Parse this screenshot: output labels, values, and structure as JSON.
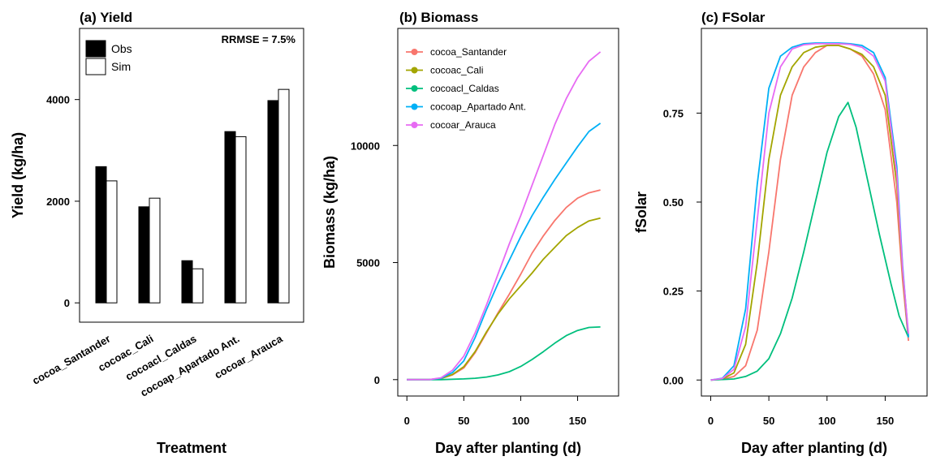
{
  "chart_data": [
    {
      "type": "bar",
      "title": "(a) Yield",
      "xlabel": "Treatment",
      "ylabel": "Yield (kg/ha)",
      "ylim": [
        -380,
        5400
      ],
      "yticks": [
        0,
        2000,
        4000
      ],
      "annotation": "RRMSE = 7.5%",
      "legend_position": "top-left",
      "categories": [
        "cocoa_Santander",
        "cocoac_Cali",
        "cocoacl_Caldas",
        "cocoap_Apartado Ant.",
        "cocoar_Arauca"
      ],
      "series": [
        {
          "name": "Obs",
          "color": "#000000",
          "values": [
            2680,
            1890,
            830,
            3370,
            3980
          ]
        },
        {
          "name": "Sim",
          "color": "#ffffff",
          "values": [
            2400,
            2060,
            670,
            3270,
            4200
          ]
        }
      ]
    },
    {
      "type": "line",
      "title": "(b) Biomass",
      "xlabel": "Day after planting (d)",
      "ylabel": "Biomass (kg/ha)",
      "xlim": [
        -8,
        186
      ],
      "ylim": [
        -700,
        15000
      ],
      "xticks": [
        0,
        50,
        100,
        150
      ],
      "yticks": [
        0,
        5000,
        10000
      ],
      "legend_position": "top-left",
      "series": [
        {
          "name": "cocoa_Santander",
          "color": "#F8766D",
          "points": [
            [
              0,
              0
            ],
            [
              20,
              5
            ],
            [
              30,
              50
            ],
            [
              40,
              200
            ],
            [
              50,
              500
            ],
            [
              60,
              1150
            ],
            [
              70,
              2000
            ],
            [
              80,
              2850
            ],
            [
              90,
              3650
            ],
            [
              100,
              4500
            ],
            [
              110,
              5400
            ],
            [
              120,
              6150
            ],
            [
              130,
              6800
            ],
            [
              140,
              7350
            ],
            [
              150,
              7750
            ],
            [
              160,
              7980
            ],
            [
              170,
              8100
            ]
          ]
        },
        {
          "name": "cocoac_Cali",
          "color": "#A3A500",
          "points": [
            [
              0,
              0
            ],
            [
              20,
              5
            ],
            [
              30,
              50
            ],
            [
              40,
              220
            ],
            [
              50,
              550
            ],
            [
              60,
              1200
            ],
            [
              70,
              2050
            ],
            [
              80,
              2800
            ],
            [
              90,
              3450
            ],
            [
              100,
              4000
            ],
            [
              110,
              4550
            ],
            [
              120,
              5150
            ],
            [
              130,
              5650
            ],
            [
              140,
              6150
            ],
            [
              150,
              6500
            ],
            [
              160,
              6780
            ],
            [
              170,
              6900
            ]
          ]
        },
        {
          "name": "cocoacl_Caldas",
          "color": "#00BF7D",
          "points": [
            [
              0,
              0
            ],
            [
              30,
              0
            ],
            [
              50,
              30
            ],
            [
              60,
              60
            ],
            [
              70,
              110
            ],
            [
              80,
              200
            ],
            [
              90,
              340
            ],
            [
              100,
              560
            ],
            [
              110,
              860
            ],
            [
              120,
              1200
            ],
            [
              130,
              1560
            ],
            [
              140,
              1880
            ],
            [
              150,
              2100
            ],
            [
              160,
              2230
            ],
            [
              170,
              2250
            ]
          ]
        },
        {
          "name": "cocoap_Apartado Ant.",
          "color": "#00B0F6",
          "points": [
            [
              0,
              0
            ],
            [
              20,
              5
            ],
            [
              30,
              60
            ],
            [
              40,
              300
            ],
            [
              50,
              800
            ],
            [
              60,
              1800
            ],
            [
              70,
              3000
            ],
            [
              80,
              4100
            ],
            [
              90,
              5100
            ],
            [
              100,
              6100
            ],
            [
              110,
              7000
            ],
            [
              120,
              7800
            ],
            [
              130,
              8550
            ],
            [
              140,
              9250
            ],
            [
              150,
              9950
            ],
            [
              160,
              10600
            ],
            [
              170,
              10950
            ]
          ]
        },
        {
          "name": "cocoar_Arauca",
          "color": "#E76BF3",
          "points": [
            [
              0,
              0
            ],
            [
              20,
              5
            ],
            [
              30,
              80
            ],
            [
              40,
              400
            ],
            [
              50,
              1000
            ],
            [
              60,
              2000
            ],
            [
              70,
              3200
            ],
            [
              80,
              4500
            ],
            [
              90,
              5800
            ],
            [
              100,
              7000
            ],
            [
              110,
              8300
            ],
            [
              120,
              9600
            ],
            [
              130,
              10900
            ],
            [
              140,
              12000
            ],
            [
              150,
              12900
            ],
            [
              160,
              13600
            ],
            [
              170,
              14000
            ]
          ]
        }
      ]
    },
    {
      "type": "line",
      "title": "(c) FSolar",
      "xlabel": "Day after planting (d)",
      "ylabel": "fSolar",
      "xlim": [
        -8,
        186
      ],
      "ylim": [
        -0.045,
        0.988
      ],
      "xticks": [
        0,
        50,
        100,
        150
      ],
      "yticks": [
        0.0,
        0.25,
        0.5,
        0.75
      ],
      "ytick_labels": [
        "0.00",
        "0.25",
        "0.50",
        "0.75"
      ],
      "series": [
        {
          "name": "cocoa_Santander",
          "color": "#F8766D",
          "points": [
            [
              0,
              0
            ],
            [
              10,
              0.002
            ],
            [
              20,
              0.01
            ],
            [
              30,
              0.04
            ],
            [
              40,
              0.14
            ],
            [
              50,
              0.36
            ],
            [
              60,
              0.62
            ],
            [
              70,
              0.8
            ],
            [
              80,
              0.88
            ],
            [
              90,
              0.92
            ],
            [
              100,
              0.94
            ],
            [
              110,
              0.94
            ],
            [
              120,
              0.93
            ],
            [
              130,
              0.91
            ],
            [
              140,
              0.86
            ],
            [
              150,
              0.76
            ],
            [
              160,
              0.5
            ],
            [
              165,
              0.28
            ],
            [
              170,
              0.11
            ]
          ]
        },
        {
          "name": "cocoac_Cali",
          "color": "#A3A500",
          "points": [
            [
              0,
              0
            ],
            [
              10,
              0.003
            ],
            [
              20,
              0.02
            ],
            [
              30,
              0.1
            ],
            [
              40,
              0.33
            ],
            [
              50,
              0.62
            ],
            [
              60,
              0.8
            ],
            [
              70,
              0.88
            ],
            [
              80,
              0.92
            ],
            [
              90,
              0.935
            ],
            [
              100,
              0.94
            ],
            [
              110,
              0.94
            ],
            [
              120,
              0.93
            ],
            [
              130,
              0.915
            ],
            [
              140,
              0.88
            ],
            [
              150,
              0.8
            ],
            [
              160,
              0.55
            ],
            [
              165,
              0.3
            ],
            [
              170,
              0.12
            ]
          ]
        },
        {
          "name": "cocoacl_Caldas",
          "color": "#00BF7D",
          "points": [
            [
              0,
              0
            ],
            [
              20,
              0.003
            ],
            [
              30,
              0.01
            ],
            [
              40,
              0.025
            ],
            [
              50,
              0.06
            ],
            [
              60,
              0.13
            ],
            [
              70,
              0.23
            ],
            [
              80,
              0.36
            ],
            [
              90,
              0.5
            ],
            [
              100,
              0.64
            ],
            [
              110,
              0.74
            ],
            [
              118,
              0.78
            ],
            [
              125,
              0.71
            ],
            [
              135,
              0.56
            ],
            [
              145,
              0.41
            ],
            [
              155,
              0.27
            ],
            [
              162,
              0.18
            ],
            [
              170,
              0.12
            ]
          ]
        },
        {
          "name": "cocoap_Apartado Ant.",
          "color": "#00B0F6",
          "points": [
            [
              0,
              0
            ],
            [
              10,
              0.005
            ],
            [
              20,
              0.04
            ],
            [
              30,
              0.2
            ],
            [
              40,
              0.55
            ],
            [
              50,
              0.82
            ],
            [
              60,
              0.91
            ],
            [
              70,
              0.935
            ],
            [
              80,
              0.945
            ],
            [
              90,
              0.947
            ],
            [
              100,
              0.947
            ],
            [
              110,
              0.947
            ],
            [
              120,
              0.945
            ],
            [
              130,
              0.94
            ],
            [
              140,
              0.92
            ],
            [
              150,
              0.85
            ],
            [
              160,
              0.6
            ],
            [
              165,
              0.32
            ],
            [
              170,
              0.12
            ]
          ]
        },
        {
          "name": "cocoar_Arauca",
          "color": "#E76BF3",
          "points": [
            [
              0,
              0
            ],
            [
              10,
              0.004
            ],
            [
              20,
              0.03
            ],
            [
              30,
              0.15
            ],
            [
              40,
              0.45
            ],
            [
              50,
              0.75
            ],
            [
              60,
              0.88
            ],
            [
              70,
              0.93
            ],
            [
              80,
              0.942
            ],
            [
              90,
              0.945
            ],
            [
              100,
              0.945
            ],
            [
              110,
              0.945
            ],
            [
              120,
              0.943
            ],
            [
              130,
              0.935
            ],
            [
              140,
              0.91
            ],
            [
              150,
              0.84
            ],
            [
              160,
              0.58
            ],
            [
              165,
              0.31
            ],
            [
              170,
              0.13
            ]
          ]
        }
      ]
    }
  ]
}
